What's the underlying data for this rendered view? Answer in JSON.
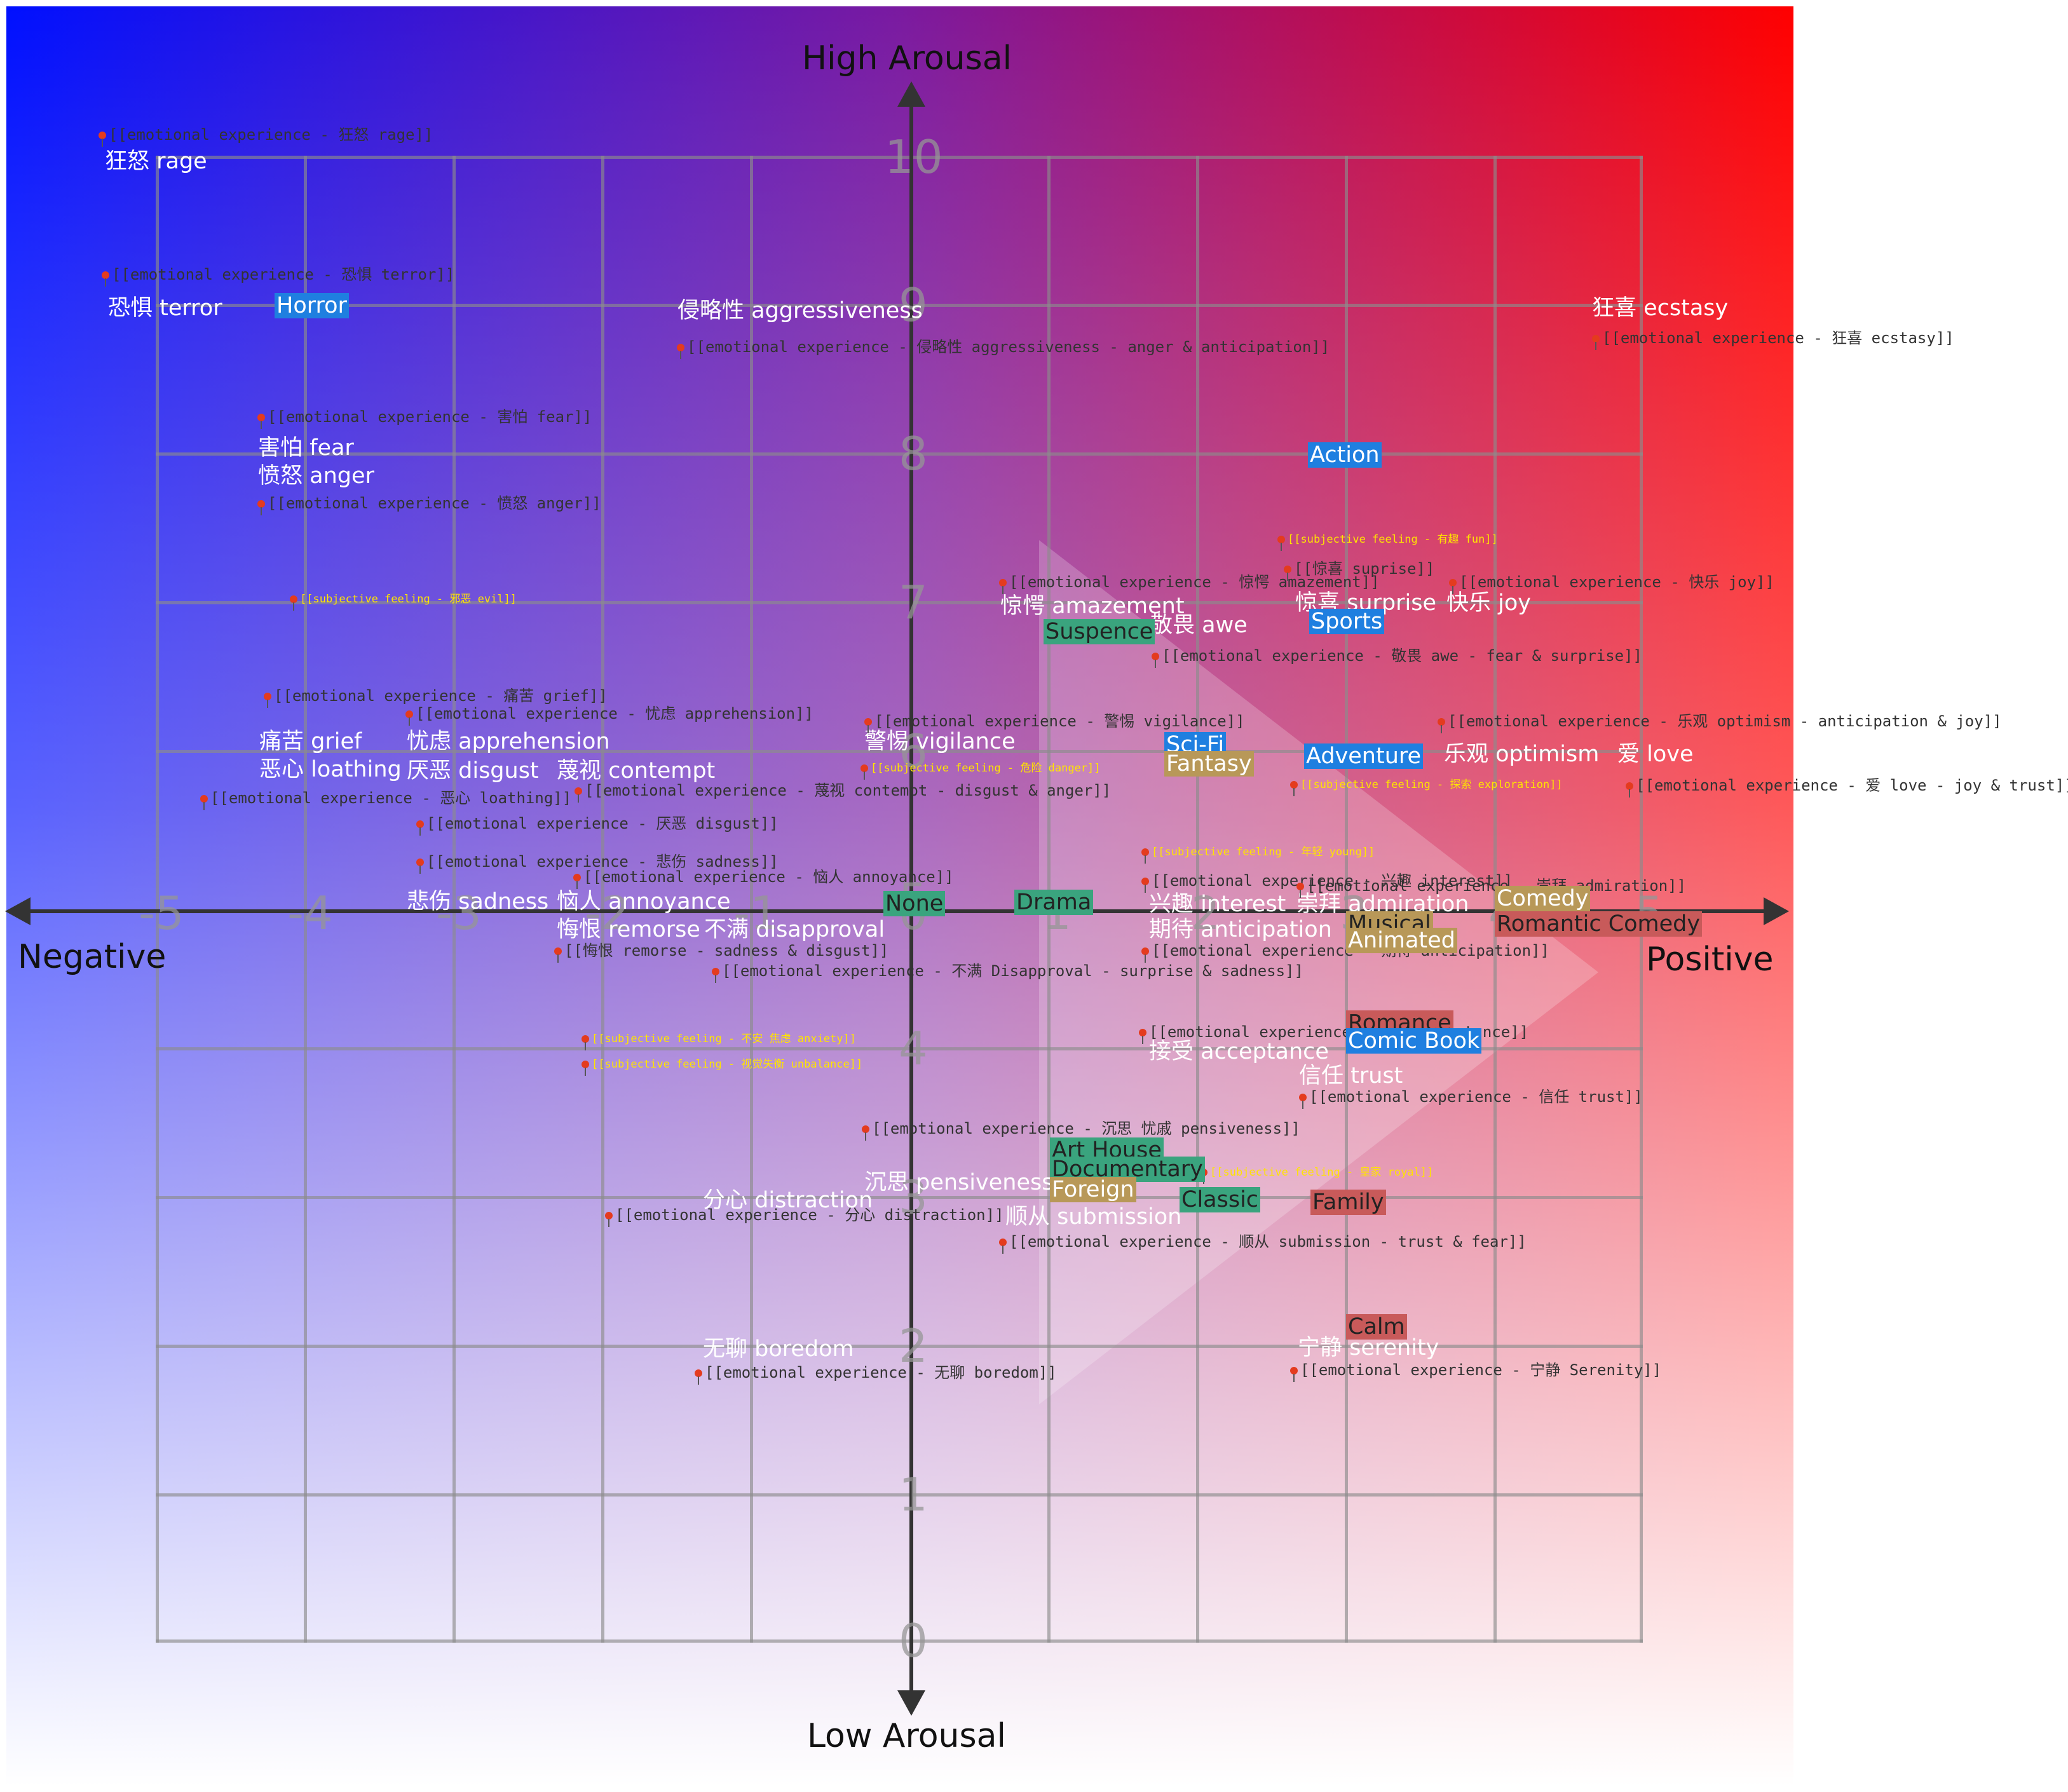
{
  "colors": {
    "negative": "#0010ff",
    "positive": "#ff0000",
    "genre_blue": "#1f7fe0",
    "genre_green": "#3aa47e",
    "genre_gold": "#b89858",
    "genre_red": "#c85a5a"
  },
  "axes": {
    "top": "High Arousal",
    "bottom": "Low Arousal",
    "left": "Negative",
    "right": "Positive",
    "x_ticks": [
      "-5",
      "-4",
      "-3",
      "-2",
      "-1",
      "0",
      "1",
      "2",
      "3",
      "4",
      "5"
    ],
    "y_ticks": [
      "10",
      "9",
      "8",
      "7",
      "6",
      "5",
      "4",
      "3",
      "2",
      "1",
      "0"
    ]
  },
  "emotions": [
    "狂怒 rage",
    "恐惧 terror",
    "侵略性 aggressiveness",
    "狂喜 ecstasy",
    "害怕 fear",
    "愤怒 anger",
    "惊愕 amazement",
    "敬畏 awe",
    "惊喜 surprise",
    "快乐 joy",
    "痛苦 grief",
    "忧虑 apprehension",
    "警惕 vigilance",
    "恶心 loathing",
    "厌恶 disgust",
    "蔑视 contempt",
    "乐观 optimism",
    "爱 love",
    "悲伤 sadness",
    "恼人 annoyance",
    "兴趣 interest",
    "崇拜 admiration",
    "悔恨 remorse",
    "不满 disapproval",
    "期待 anticipation",
    "接受 acceptance",
    "信任 trust",
    "沉思 pensiveness",
    "分心 distraction",
    "顺从 submission",
    "无聊 boredom",
    "宁静 serenity"
  ],
  "references": [
    "[[emotional experience - 狂怒 rage]]",
    "[[emotional experience - 恐惧 terror]]",
    "[[emotional experience - 侵略性 aggressiveness - anger & anticipation]]",
    "[[emotional experience - 狂喜 ecstasy]]",
    "[[emotional experience - 害怕 fear]]",
    "[[emotional experience - 愤怒 anger]]",
    "[[惊喜 suprise]]",
    "[[emotional experience - 惊愕 amazement]]",
    "[[emotional experience - 快乐 joy]]",
    "[[emotional experience - 敬畏 awe - fear & surprise]]",
    "[[emotional experience - 痛苦 grief]]",
    "[[emotional experience - 忧虑 apprehension]]",
    "[[emotional experience - 警惕 vigilance]]",
    "[[emotional experience - 乐观 optimism - anticipation & joy]]",
    "[[emotional experience - 恶心 loathing]]",
    "[[emotional experience - 蔑视 contempt - disgust & anger]]",
    "[[emotional experience - 爱 love - joy & trust]]",
    "[[emotional experience - 厌恶 disgust]]",
    "[[emotional experience - 悲伤 sadness]]",
    "[[emotional experience - 恼人 annoyance]]",
    "[[emotional experience - 兴趣 interest]]",
    "[[emotional experience - 崇拜 admiration]]",
    "[[悔恨 remorse - sadness & disgust]]",
    "[[emotional experience - 期待 anticipation]]",
    "[[emotional experience - 不满 Disapproval - surprise & sadness]]",
    "[[emotional experience - 接受 acceptance]]",
    "[[emotional experience - 信任 trust]]",
    "[[emotional experience - 沉思 忧戚 pensiveness]]",
    "[[emotional experience - 分心 distraction]]",
    "[[emotional experience - 顺从 submission - trust & fear]]",
    "[[emotional experience - 无聊 boredom]]",
    "[[emotional experience - 宁静 Serenity]]"
  ],
  "subjective": [
    "[[subjective feeling - 有趣 fun]]",
    "[[subjective feeling - 邪恶 evil]]",
    "[[subjective feeling - 危险 danger]]",
    "[[subjective feeling - 探索 exploration]]",
    "[[subjective feeling - 年轻 young]]",
    "[[subjective feeling - 不安 焦虑 anxiety]]",
    "[[subjective feeling - 视觉失衡 unbalance]]",
    "[[subjective feeling - 皇家 royal]]"
  ],
  "genres": [
    "Horror",
    "Action",
    "Suspence",
    "Sports",
    "Sci-Fi",
    "Fantasy",
    "Adventure",
    "None",
    "Drama",
    "Comedy",
    "Romantic Comedy",
    "Musical",
    "Animated",
    "Romance",
    "Comic Book",
    "Art House",
    "Documentary",
    "Foreign",
    "Classic",
    "Family",
    "Calm"
  ]
}
